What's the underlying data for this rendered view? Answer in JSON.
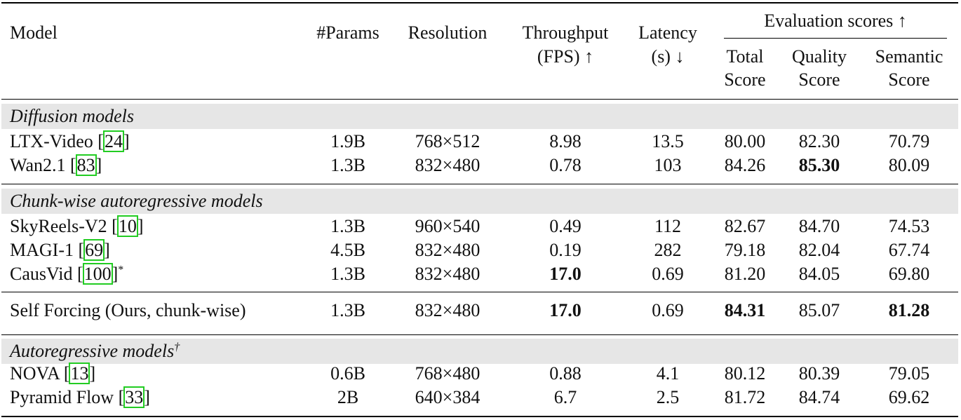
{
  "header": {
    "model": "Model",
    "params": "#Params",
    "resolution": "Resolution",
    "throughput_l1": "Throughput",
    "throughput_l2": "(FPS) ↑",
    "latency_l1": "Latency",
    "latency_l2": "(s) ↓",
    "eval_group": "Evaluation scores ↑",
    "total_l1": "Total",
    "total_l2": "Score",
    "quality_l1": "Quality",
    "quality_l2": "Score",
    "semantic_l1": "Semantic",
    "semantic_l2": "Score"
  },
  "sections": {
    "diffusion": "Diffusion models",
    "chunkwise": "Chunk-wise autoregressive models",
    "autoregressive": "Autoregressive models",
    "autoregressive_mark": "†"
  },
  "rows": [
    {
      "name": "LTX-Video [",
      "ref": "24",
      "tail": "]",
      "mark": "",
      "params": "1.9B",
      "res": "768×512",
      "fps": "8.98",
      "lat": "13.5",
      "total": "80.00",
      "quality": "82.30",
      "semantic": "70.79"
    },
    {
      "name": "Wan2.1 [",
      "ref": "83",
      "tail": "]",
      "mark": "",
      "params": "1.3B",
      "res": "832×480",
      "fps": "0.78",
      "lat": "103",
      "total": "84.26",
      "quality": "85.30",
      "semantic": "80.09"
    },
    {
      "name": "SkyReels-V2 [",
      "ref": "10",
      "tail": "]",
      "mark": "",
      "params": "1.3B",
      "res": "960×540",
      "fps": "0.49",
      "lat": "112",
      "total": "82.67",
      "quality": "84.70",
      "semantic": "74.53"
    },
    {
      "name": "MAGI-1 [",
      "ref": "69",
      "tail": "]",
      "mark": "",
      "params": "4.5B",
      "res": "832×480",
      "fps": "0.19",
      "lat": "282",
      "total": "79.18",
      "quality": "82.04",
      "semantic": "67.74"
    },
    {
      "name": "CausVid [",
      "ref": "100",
      "tail": "]",
      "mark": "*",
      "params": "1.3B",
      "res": "832×480",
      "fps": "17.0",
      "lat": "0.69",
      "total": "81.20",
      "quality": "84.05",
      "semantic": "69.80"
    },
    {
      "name": "Self Forcing (Ours, chunk-wise)",
      "ref": "",
      "tail": "",
      "mark": "",
      "params": "1.3B",
      "res": "832×480",
      "fps": "17.0",
      "lat": "0.69",
      "total": "84.31",
      "quality": "85.07",
      "semantic": "81.28"
    },
    {
      "name": "NOVA [",
      "ref": "13",
      "tail": "]",
      "mark": "",
      "params": "0.6B",
      "res": "768×480",
      "fps": "0.88",
      "lat": "4.1",
      "total": "80.12",
      "quality": "80.39",
      "semantic": "79.05"
    },
    {
      "name": "Pyramid Flow [",
      "ref": "33",
      "tail": "]",
      "mark": "",
      "params": "2B",
      "res": "640×384",
      "fps": "6.7",
      "lat": "2.5",
      "total": "81.72",
      "quality": "84.74",
      "semantic": "69.62"
    }
  ]
}
